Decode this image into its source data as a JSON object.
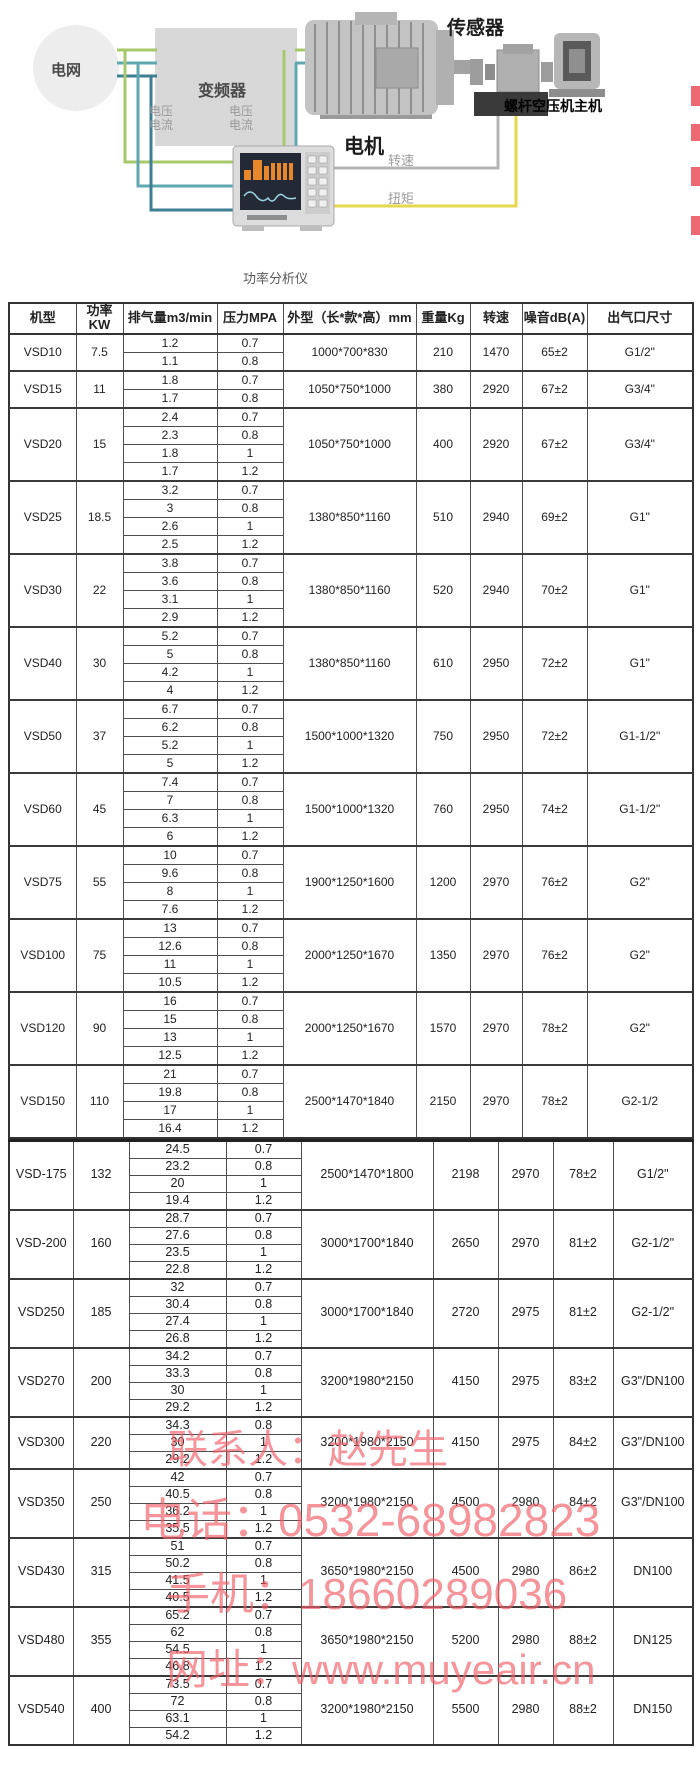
{
  "diagram": {
    "labels": {
      "grid": "电网",
      "inverter": "变频器",
      "motor": "电机",
      "sensor": "传感器",
      "compressor": "螺杆空压机主机",
      "voltage_current_1": "电压\n电流",
      "voltage_current_2": "电压\n电流",
      "speed": "转速",
      "torque": "扭矩",
      "analyzer_caption": "功率分析仪"
    },
    "colors": {
      "wire_green": "#a6c96a",
      "wire_teal": "#5fa8b0",
      "wire_dark_teal": "#3e7f94",
      "wire_yellow": "#e5d74e",
      "wire_gray": "#b5b5b5",
      "screen_orange": "#e8862a",
      "watermark_red": "#ef5f6b"
    }
  },
  "table": {
    "headers": [
      "机型",
      "功率KW",
      "排气量m3/min",
      "压力MPA",
      "外型（长*款*高）mm",
      "重量Kg",
      "转速",
      "噪音dB(A)",
      "出气口尺寸"
    ],
    "section1": [
      {
        "model": "VSD10",
        "power": "7.5",
        "rows": [
          [
            "1.2",
            "0.7"
          ],
          [
            "1.1",
            "0.8"
          ]
        ],
        "dims": "1000*700*830",
        "weight": "210",
        "speed": "1470",
        "noise": "65±2",
        "outlet": "G1/2\""
      },
      {
        "model": "VSD15",
        "power": "11",
        "rows": [
          [
            "1.8",
            "0.7"
          ],
          [
            "1.7",
            "0.8"
          ]
        ],
        "dims": "1050*750*1000",
        "weight": "380",
        "speed": "2920",
        "noise": "67±2",
        "outlet": "G3/4\""
      },
      {
        "model": "VSD20",
        "power": "15",
        "rows": [
          [
            "2.4",
            "0.7"
          ],
          [
            "2.3",
            "0.8"
          ],
          [
            "1.8",
            "1"
          ],
          [
            "1.7",
            "1.2"
          ]
        ],
        "dims": "1050*750*1000",
        "weight": "400",
        "speed": "2920",
        "noise": "67±2",
        "outlet": "G3/4\""
      },
      {
        "model": "VSD25",
        "power": "18.5",
        "rows": [
          [
            "3.2",
            "0.7"
          ],
          [
            "3",
            "0.8"
          ],
          [
            "2.6",
            "1"
          ],
          [
            "2.5",
            "1.2"
          ]
        ],
        "dims": "1380*850*1160",
        "weight": "510",
        "speed": "2940",
        "noise": "69±2",
        "outlet": "G1\""
      },
      {
        "model": "VSD30",
        "power": "22",
        "rows": [
          [
            "3.8",
            "0.7"
          ],
          [
            "3.6",
            "0.8"
          ],
          [
            "3.1",
            "1"
          ],
          [
            "2.9",
            "1.2"
          ]
        ],
        "dims": "1380*850*1160",
        "weight": "520",
        "speed": "2940",
        "noise": "70±2",
        "outlet": "G1\""
      },
      {
        "model": "VSD40",
        "power": "30",
        "rows": [
          [
            "5.2",
            "0.7"
          ],
          [
            "5",
            "0.8"
          ],
          [
            "4.2",
            "1"
          ],
          [
            "4",
            "1.2"
          ]
        ],
        "dims": "1380*850*1160",
        "weight": "610",
        "speed": "2950",
        "noise": "72±2",
        "outlet": "G1\""
      },
      {
        "model": "VSD50",
        "power": "37",
        "rows": [
          [
            "6.7",
            "0.7"
          ],
          [
            "6.2",
            "0.8"
          ],
          [
            "5.2",
            "1"
          ],
          [
            "5",
            "1.2"
          ]
        ],
        "dims": "1500*1000*1320",
        "weight": "750",
        "speed": "2950",
        "noise": "72±2",
        "outlet": "G1-1/2\""
      },
      {
        "model": "VSD60",
        "power": "45",
        "rows": [
          [
            "7.4",
            "0.7"
          ],
          [
            "7",
            "0.8"
          ],
          [
            "6.3",
            "1"
          ],
          [
            "6",
            "1.2"
          ]
        ],
        "dims": "1500*1000*1320",
        "weight": "760",
        "speed": "2950",
        "noise": "74±2",
        "outlet": "G1-1/2\""
      },
      {
        "model": "VSD75",
        "power": "55",
        "rows": [
          [
            "10",
            "0.7"
          ],
          [
            "9.6",
            "0.8"
          ],
          [
            "8",
            "1"
          ],
          [
            "7.6",
            "1.2"
          ]
        ],
        "dims": "1900*1250*1600",
        "weight": "1200",
        "speed": "2970",
        "noise": "76±2",
        "outlet": "G2\""
      },
      {
        "model": "VSD100",
        "power": "75",
        "rows": [
          [
            "13",
            "0.7"
          ],
          [
            "12.6",
            "0.8"
          ],
          [
            "11",
            "1"
          ],
          [
            "10.5",
            "1.2"
          ]
        ],
        "dims": "2000*1250*1670",
        "weight": "1350",
        "speed": "2970",
        "noise": "76±2",
        "outlet": "G2\""
      },
      {
        "model": "VSD120",
        "power": "90",
        "rows": [
          [
            "16",
            "0.7"
          ],
          [
            "15",
            "0.8"
          ],
          [
            "13",
            "1"
          ],
          [
            "12.5",
            "1.2"
          ]
        ],
        "dims": "2000*1250*1670",
        "weight": "1570",
        "speed": "2970",
        "noise": "78±2",
        "outlet": "G2\""
      },
      {
        "model": "VSD150",
        "power": "110",
        "rows": [
          [
            "21",
            "0.7"
          ],
          [
            "19.8",
            "0.8"
          ],
          [
            "17",
            "1"
          ],
          [
            "16.4",
            "1.2"
          ]
        ],
        "dims": "2500*1470*1840",
        "weight": "2150",
        "speed": "2970",
        "noise": "78±2",
        "outlet": "G2-1/2"
      }
    ],
    "section2": [
      {
        "model": "VSD-175",
        "power": "132",
        "rows": [
          [
            "24.5",
            "0.7"
          ],
          [
            "23.2",
            "0.8"
          ],
          [
            "20",
            "1"
          ],
          [
            "19.4",
            "1.2"
          ]
        ],
        "dims": "2500*1470*1800",
        "weight": "2198",
        "speed": "2970",
        "noise": "78±2",
        "outlet": "G1/2\""
      },
      {
        "model": "VSD-200",
        "power": "160",
        "rows": [
          [
            "28.7",
            "0.7"
          ],
          [
            "27.6",
            "0.8"
          ],
          [
            "23.5",
            "1"
          ],
          [
            "22.8",
            "1.2"
          ]
        ],
        "dims": "3000*1700*1840",
        "weight": "2650",
        "speed": "2970",
        "noise": "81±2",
        "outlet": "G2-1/2\""
      },
      {
        "model": "VSD250",
        "power": "185",
        "rows": [
          [
            "32",
            "0.7"
          ],
          [
            "30.4",
            "0.8"
          ],
          [
            "27.4",
            "1"
          ],
          [
            "26.8",
            "1.2"
          ]
        ],
        "dims": "3000*1700*1840",
        "weight": "2720",
        "speed": "2975",
        "noise": "81±2",
        "outlet": "G2-1/2\""
      },
      {
        "model": "VSD270",
        "power": "200",
        "rows": [
          [
            "34.2",
            "0.7"
          ],
          [
            "33.3",
            "0.8"
          ],
          [
            "30",
            "1"
          ],
          [
            "29.2",
            "1.2"
          ]
        ],
        "dims": "3200*1980*2150",
        "weight": "4150",
        "speed": "2975",
        "noise": "83±2",
        "outlet": "G3\"/DN100"
      },
      {
        "model": "VSD300",
        "power": "220",
        "rows": [
          [
            "34.3",
            "0.8"
          ],
          [
            "30",
            "1"
          ],
          [
            "29.2",
            "1.2"
          ]
        ],
        "dims": "3200*1980*2150",
        "weight": "4150",
        "speed": "2975",
        "noise": "84±2",
        "outlet": "G3\"/DN100"
      },
      {
        "model": "VSD350",
        "power": "250",
        "rows": [
          [
            "42",
            "0.7"
          ],
          [
            "40.5",
            "0.8"
          ],
          [
            "36.2",
            "1"
          ],
          [
            "35.5",
            "1.2"
          ]
        ],
        "dims": "3200*1980*2150",
        "weight": "4500",
        "speed": "2980",
        "noise": "84±2",
        "outlet": "G3\"/DN100"
      },
      {
        "model": "VSD430",
        "power": "315",
        "rows": [
          [
            "51",
            "0.7"
          ],
          [
            "50.2",
            "0.8"
          ],
          [
            "41.5",
            "1"
          ],
          [
            "40.5",
            "1.2"
          ]
        ],
        "dims": "3650*1980*2150",
        "weight": "4500",
        "speed": "2980",
        "noise": "86±2",
        "outlet": "DN100"
      },
      {
        "model": "VSD480",
        "power": "355",
        "rows": [
          [
            "65.2",
            "0.7"
          ],
          [
            "62",
            "0.8"
          ],
          [
            "54.5",
            "1"
          ],
          [
            "46.8",
            "1.2"
          ]
        ],
        "dims": "3650*1980*2150",
        "weight": "5200",
        "speed": "2980",
        "noise": "88±2",
        "outlet": "DN125"
      },
      {
        "model": "VSD540",
        "power": "400",
        "rows": [
          [
            "73.5",
            "0.7"
          ],
          [
            "72",
            "0.8"
          ],
          [
            "63.1",
            "1"
          ],
          [
            "54.2",
            "1.2"
          ]
        ],
        "dims": "3200*1980*2150",
        "weight": "5500",
        "speed": "2980",
        "noise": "88±2",
        "outlet": "DN150"
      }
    ]
  },
  "watermark": {
    "line1": "联系人：赵先生",
    "line2": "电话：0532-68982823",
    "line3": "手机：18660289036",
    "line4": "网址：www.muyeair.cn"
  }
}
